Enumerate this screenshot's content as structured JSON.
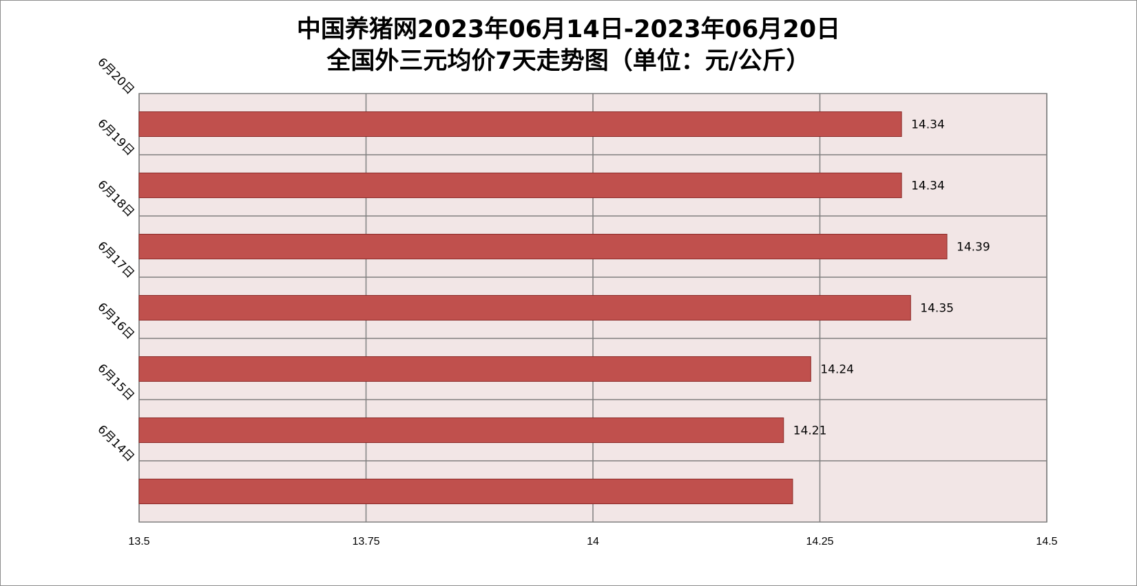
{
  "chart_data": {
    "type": "bar",
    "orientation": "horizontal",
    "title_line1": "中国养猪网2023年06月14日-2023年06月20日",
    "title_line2": "全国外三元均价7天走势图（单位：元/公斤）",
    "categories": [
      "6月20日",
      "6月19日",
      "6月18日",
      "6月17日",
      "6月16日",
      "6月15日",
      "6月14日"
    ],
    "values": [
      14.34,
      14.34,
      14.39,
      14.35,
      14.24,
      14.21,
      14.22
    ],
    "data_labels": [
      "14.34",
      "14.34",
      "14.39",
      "14.35",
      "14.24",
      "14.21",
      ""
    ],
    "xlim": [
      13.5,
      14.5
    ],
    "xticks": [
      13.5,
      13.75,
      14,
      14.25,
      14.5
    ],
    "xtick_labels": [
      "13.5",
      "13.75",
      "14",
      "14.25",
      "14.5"
    ],
    "grid": true,
    "colors": {
      "bar": "#c0504d",
      "bar_border": "#8b2a28",
      "plot_bg": "#f2e6e6",
      "grid": "#7f7f7f"
    }
  }
}
